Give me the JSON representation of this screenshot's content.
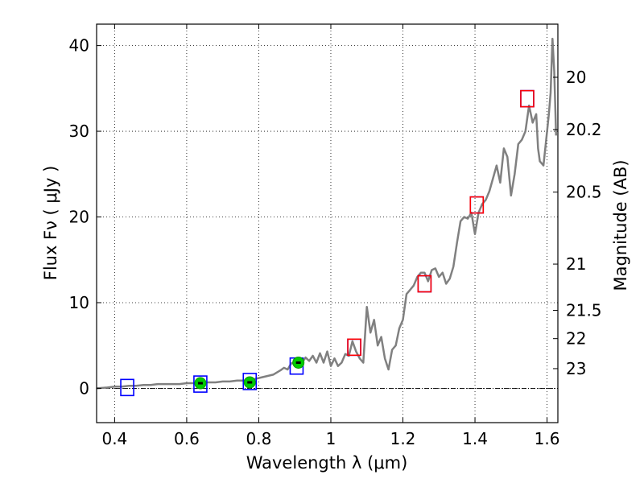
{
  "chart_data": {
    "type": "line",
    "xlabel": "Wavelength  λ (μm)",
    "ylabel": "Flux  Fν  ( μJy )",
    "ylabel_right": "Magnitude (AB)",
    "xlim": [
      0.35,
      1.63
    ],
    "ylim": [
      -4,
      42.5
    ],
    "grid": true,
    "x_ticks": [
      0.4,
      0.6,
      0.8,
      1.0,
      1.2,
      1.4,
      1.6
    ],
    "x_tick_labels": [
      "0.4",
      "0.6",
      "0.8",
      "1",
      "1.2",
      "1.4",
      "1.6"
    ],
    "y_ticks": [
      0,
      10,
      20,
      30,
      40
    ],
    "y_tick_labels": [
      "0",
      "10",
      "20",
      "30",
      "40"
    ],
    "right_ticks": [
      {
        "label": "20",
        "flux": 36.3
      },
      {
        "label": "20.2",
        "flux": 30.2
      },
      {
        "label": "20.5",
        "flux": 22.9
      },
      {
        "label": "21",
        "flux": 14.5
      },
      {
        "label": "21.5",
        "flux": 9.1
      },
      {
        "label": "22",
        "flux": 5.8
      },
      {
        "label": "23",
        "flux": 2.3
      }
    ],
    "series": [
      {
        "type": "line",
        "color": "#808080",
        "x": [
          0.35,
          0.38,
          0.4,
          0.42,
          0.44,
          0.46,
          0.48,
          0.5,
          0.52,
          0.55,
          0.58,
          0.6,
          0.62,
          0.64,
          0.66,
          0.68,
          0.7,
          0.72,
          0.74,
          0.76,
          0.78,
          0.8,
          0.82,
          0.84,
          0.86,
          0.87,
          0.88,
          0.89,
          0.9,
          0.91,
          0.92,
          0.93,
          0.94,
          0.95,
          0.96,
          0.97,
          0.98,
          0.99,
          1.0,
          1.01,
          1.02,
          1.03,
          1.04,
          1.05,
          1.06,
          1.07,
          1.08,
          1.09,
          1.1,
          1.11,
          1.12,
          1.13,
          1.14,
          1.15,
          1.16,
          1.17,
          1.18,
          1.19,
          1.2,
          1.21,
          1.22,
          1.23,
          1.24,
          1.25,
          1.26,
          1.27,
          1.28,
          1.29,
          1.3,
          1.31,
          1.32,
          1.33,
          1.34,
          1.35,
          1.36,
          1.37,
          1.38,
          1.39,
          1.4,
          1.41,
          1.42,
          1.43,
          1.44,
          1.45,
          1.46,
          1.47,
          1.48,
          1.49,
          1.5,
          1.51,
          1.52,
          1.53,
          1.54,
          1.55,
          1.56,
          1.57,
          1.575,
          1.58,
          1.59,
          1.6,
          1.605,
          1.61,
          1.615,
          1.62,
          1.625
        ],
        "y": [
          0.0,
          0.1,
          0.2,
          0.2,
          0.3,
          0.3,
          0.4,
          0.4,
          0.5,
          0.5,
          0.5,
          0.6,
          0.6,
          0.7,
          0.7,
          0.7,
          0.8,
          0.8,
          0.9,
          0.9,
          1.0,
          1.2,
          1.4,
          1.6,
          2.1,
          2.4,
          2.2,
          2.9,
          3.0,
          3.4,
          3.0,
          3.6,
          3.2,
          3.8,
          3.0,
          4.1,
          3.0,
          4.3,
          2.6,
          3.5,
          2.6,
          3.0,
          4.0,
          3.8,
          5.5,
          4.3,
          3.5,
          3.0,
          9.5,
          6.5,
          8.0,
          5.0,
          6.0,
          3.5,
          2.2,
          4.5,
          5.0,
          7.0,
          8.0,
          11.0,
          11.5,
          12.0,
          13.0,
          13.5,
          13.5,
          12.5,
          13.8,
          14.0,
          13.0,
          13.5,
          12.2,
          12.8,
          14.2,
          17.0,
          19.5,
          20.0,
          19.8,
          20.5,
          18.0,
          20.5,
          21.5,
          22.0,
          23.0,
          24.5,
          26.0,
          24.0,
          28.0,
          27.0,
          22.5,
          25.0,
          28.5,
          29.0,
          30.0,
          33.0,
          31.0,
          32.0,
          28.0,
          26.5,
          26.0,
          30.0,
          32.0,
          34.5,
          40.8,
          37.0,
          29.5
        ]
      },
      {
        "type": "scatter",
        "marker": "square",
        "edgecolor": "#0000ff",
        "x": [
          0.435,
          0.638,
          0.775,
          0.905,
          1.065,
          1.26,
          1.405,
          1.545
        ],
        "y": [
          0.1,
          0.5,
          0.8,
          2.6,
          4.8,
          12.2,
          21.4,
          33.8
        ]
      },
      {
        "type": "scatter",
        "marker": "square",
        "edgecolor": "#ff0000",
        "x": [
          1.065,
          1.26,
          1.405,
          1.545
        ],
        "y": [
          4.8,
          12.2,
          21.4,
          33.8
        ]
      },
      {
        "type": "scatter",
        "marker": "circle",
        "color": "#00cc00",
        "x": [
          0.638,
          0.775,
          0.91
        ],
        "y": [
          0.6,
          0.7,
          3.0
        ]
      }
    ]
  }
}
